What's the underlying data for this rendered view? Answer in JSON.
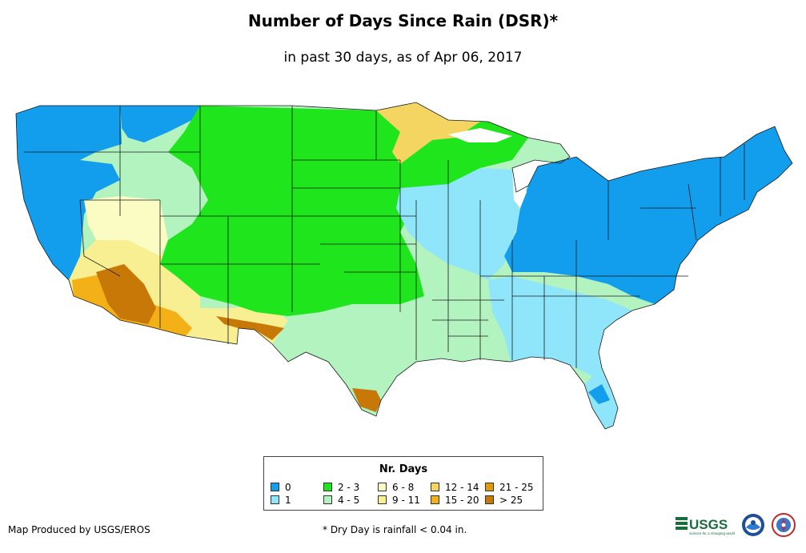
{
  "title": "Number of Days Since Rain (DSR)*",
  "subtitle": "in past 30 days, as of Apr 06, 2017",
  "legend": {
    "title": "Nr. Days",
    "items": [
      {
        "label": "0",
        "color": "#129ded"
      },
      {
        "label": "1",
        "color": "#8fe6fb"
      },
      {
        "label": "2 - 3",
        "color": "#1fe51c"
      },
      {
        "label": "4 - 5",
        "color": "#b3f3c0"
      },
      {
        "label": "6 - 8",
        "color": "#fbfbc4"
      },
      {
        "label": "9 - 11",
        "color": "#f8ef92"
      },
      {
        "label": "12 - 14",
        "color": "#f5d561"
      },
      {
        "label": "15 - 20",
        "color": "#f4b017"
      },
      {
        "label": "21 - 25",
        "color": "#e39a0f"
      },
      {
        "label": "> 25",
        "color": "#c77807"
      }
    ]
  },
  "credit": "Map Produced by USGS/EROS",
  "footnote": "* Dry Day is rainfall < 0.04 in.",
  "logos": {
    "usgs": "USGS",
    "usgs_tagline": "science for a changing world"
  },
  "colors": {
    "outline": "#1a1a1a",
    "background": "#ffffff"
  }
}
